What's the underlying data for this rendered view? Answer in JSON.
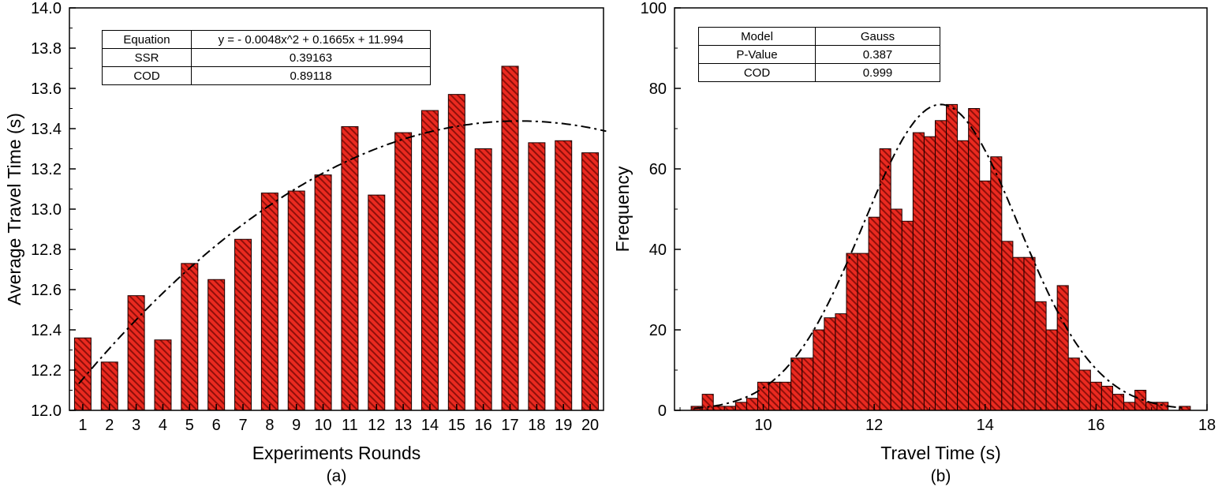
{
  "figure": {
    "background": "#ffffff"
  },
  "chart_data": [
    {
      "id": "average-travel-time-by-round",
      "type": "bar",
      "caption": "(a)",
      "xlabel": "Experiments Rounds",
      "ylabel": "Average Travel Time (s)",
      "categories": [
        "1",
        "2",
        "3",
        "4",
        "5",
        "6",
        "7",
        "8",
        "9",
        "10",
        "11",
        "12",
        "13",
        "14",
        "15",
        "16",
        "17",
        "18",
        "19",
        "20"
      ],
      "values": [
        12.36,
        12.24,
        12.57,
        12.35,
        12.73,
        12.65,
        12.85,
        13.08,
        13.09,
        13.17,
        13.41,
        13.07,
        13.38,
        13.49,
        13.57,
        13.3,
        13.71,
        13.33,
        13.34,
        13.28
      ],
      "ylim": [
        12.0,
        14.0
      ],
      "ytick_major": 0.2,
      "ytick_minor": 0.1,
      "grid": false,
      "bar_fill": "#ea2a20",
      "bar_hatch": "#8f0f0a",
      "bar_edge": "#1c0000",
      "fit_curve": {
        "kind": "quadratic",
        "equation": "y = - 0.0048x^2 + 0.1665x + 11.994",
        "coefficients": {
          "a": -0.0048,
          "b": 0.1665,
          "c": 11.994
        },
        "x_range": [
          0.85,
          20.6
        ],
        "color": "#000000",
        "style": "dash-dot"
      },
      "inset_table": {
        "rows": [
          [
            "Equation",
            "y = - 0.0048x^2 + 0.1665x + 11.994"
          ],
          [
            "SSR",
            "0.39163"
          ],
          [
            "COD",
            "0.89118"
          ]
        ]
      }
    },
    {
      "id": "travel-time-histogram",
      "type": "histogram",
      "caption": "(b)",
      "xlabel": "Travel Time (s)",
      "ylabel": "Frequency",
      "bin_start": 8.7,
      "bin_width": 0.2,
      "frequencies": [
        1,
        4,
        1,
        1,
        2,
        3,
        7,
        7,
        7,
        13,
        13,
        20,
        23,
        24,
        39,
        39,
        48,
        65,
        50,
        47,
        69,
        68,
        72,
        76,
        67,
        75,
        57,
        63,
        42,
        38,
        38,
        27,
        20,
        31,
        13,
        10,
        7,
        6,
        4,
        2,
        5,
        2,
        2,
        0,
        1
      ],
      "xlim": [
        8.4,
        18
      ],
      "xticks_major": [
        10,
        12,
        14,
        16,
        18
      ],
      "xtick_minor": 0.5,
      "ylim": [
        0,
        100
      ],
      "ytick_major": 20,
      "ytick_minor": 10,
      "grid": false,
      "bar_fill": "#ea2a20",
      "bar_hatch": "#8f0f0a",
      "bar_edge": "#1c0000",
      "fit_curve": {
        "kind": "gauss",
        "amplitude": 76,
        "mean": 13.2,
        "sigma": 1.4,
        "x_range": [
          8.75,
          17.6
        ],
        "color": "#000000",
        "style": "dash-dot"
      },
      "inset_table": {
        "rows": [
          [
            "Model",
            "Gauss"
          ],
          [
            "P-Value",
            "0.387"
          ],
          [
            "COD",
            "0.999"
          ]
        ]
      }
    }
  ]
}
